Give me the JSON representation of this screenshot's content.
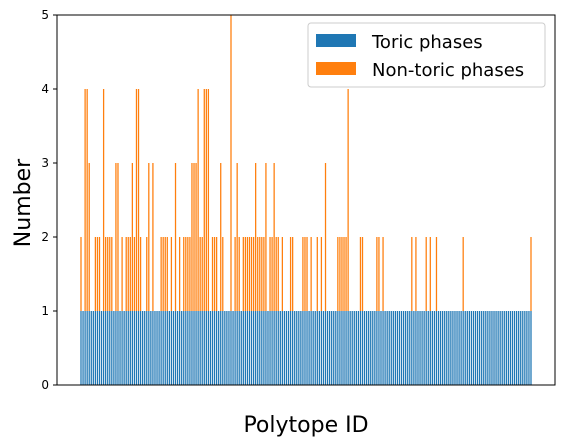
{
  "chart_data": {
    "type": "bar",
    "stacked": true,
    "title": "",
    "xlabel": "Polytope ID",
    "ylabel": "Number",
    "ylim": [
      0,
      5
    ],
    "y_ticks": [
      "0",
      "1",
      "2",
      "3",
      "4",
      "5"
    ],
    "x_ticks": [],
    "grid": false,
    "legend_position": "top-right",
    "series": [
      {
        "name": "Toric phases",
        "color": "#1f77b4",
        "values": [
          1,
          1,
          1,
          1,
          1,
          1,
          1,
          1,
          1,
          1,
          1,
          1,
          1,
          1,
          1,
          1,
          1,
          1,
          1,
          1,
          1,
          1,
          1,
          1,
          1,
          1,
          1,
          1,
          1,
          1,
          1,
          1,
          1,
          1,
          1,
          1,
          1,
          1,
          1,
          1,
          1,
          1,
          1,
          1,
          1,
          1,
          1,
          1,
          1,
          1,
          1,
          1,
          1,
          1,
          1,
          1,
          1,
          1,
          1,
          1,
          1,
          1,
          1,
          1,
          1,
          1,
          1,
          1,
          1,
          1,
          1,
          1,
          1,
          1,
          1,
          1,
          1,
          1,
          1,
          1,
          1,
          1,
          1,
          1,
          1,
          1,
          1,
          1,
          1,
          1,
          1,
          1,
          1,
          1,
          1,
          1,
          1,
          1,
          1,
          1,
          1,
          1,
          1,
          1,
          1,
          1,
          1,
          1,
          1,
          1,
          1,
          1,
          1,
          1,
          1,
          1,
          1,
          1,
          1,
          1,
          1,
          1,
          1,
          1,
          1,
          1,
          1,
          1,
          1,
          1,
          1,
          1,
          1,
          1,
          1,
          1,
          1,
          1,
          1,
          1,
          1,
          1,
          1,
          1,
          1,
          1,
          1,
          1,
          1,
          1,
          1,
          1,
          1,
          1,
          1,
          1,
          1,
          1,
          1,
          1,
          1,
          1,
          1,
          1,
          1,
          1,
          1,
          1,
          1,
          1,
          1,
          1,
          1,
          1,
          1,
          1,
          1,
          1,
          1,
          1,
          1,
          1,
          1,
          1,
          1,
          1,
          1,
          1,
          1,
          1,
          1,
          1,
          1,
          1,
          1,
          1,
          1,
          1,
          1,
          1,
          1,
          1,
          1,
          1,
          1,
          1,
          1,
          1,
          1,
          1,
          1,
          1,
          1,
          1,
          1,
          1,
          1,
          1,
          1,
          1
        ]
      },
      {
        "name": "Non-toric phases",
        "color": "#ff7f0e",
        "values": [
          1,
          0,
          3,
          3,
          2,
          0,
          0,
          1,
          1,
          1,
          0,
          3,
          1,
          1,
          1,
          1,
          0,
          2,
          2,
          0,
          1,
          0,
          1,
          1,
          1,
          2,
          1,
          3,
          3,
          1,
          0,
          0,
          1,
          2,
          0,
          2,
          0,
          0,
          0,
          1,
          1,
          1,
          1,
          0,
          1,
          0,
          2,
          0,
          1,
          0,
          1,
          1,
          1,
          1,
          2,
          2,
          2,
          3,
          1,
          1,
          3,
          3,
          3,
          0,
          1,
          1,
          1,
          0,
          2,
          1,
          0,
          0,
          0,
          4,
          0,
          1,
          2,
          1,
          0,
          1,
          1,
          1,
          1,
          1,
          1,
          2,
          1,
          1,
          1,
          1,
          2,
          0,
          1,
          1,
          2,
          1,
          1,
          0,
          1,
          0,
          0,
          0,
          1,
          1,
          0,
          0,
          0,
          0,
          1,
          1,
          1,
          0,
          1,
          0,
          0,
          1,
          0,
          1,
          0,
          2,
          0,
          0,
          0,
          0,
          0,
          1,
          1,
          1,
          1,
          1,
          3,
          0,
          0,
          0,
          0,
          0,
          1,
          1,
          0,
          0,
          0,
          0,
          0,
          0,
          1,
          1,
          0,
          1,
          0,
          0,
          0,
          0,
          0,
          0,
          0,
          0,
          0,
          0,
          0,
          0,
          0,
          1,
          0,
          1,
          0,
          0,
          0,
          0,
          1,
          0,
          1,
          0,
          0,
          1,
          0,
          0,
          0,
          0,
          0,
          0,
          0,
          0,
          0,
          0,
          0,
          0,
          1,
          0,
          0,
          0,
          0,
          0,
          0,
          0,
          0,
          0,
          0,
          0,
          0,
          0,
          0,
          0,
          0,
          0,
          0,
          0,
          0,
          0,
          0,
          0,
          0,
          0,
          0,
          0,
          0,
          0,
          0,
          0,
          0,
          1
        ]
      }
    ]
  }
}
